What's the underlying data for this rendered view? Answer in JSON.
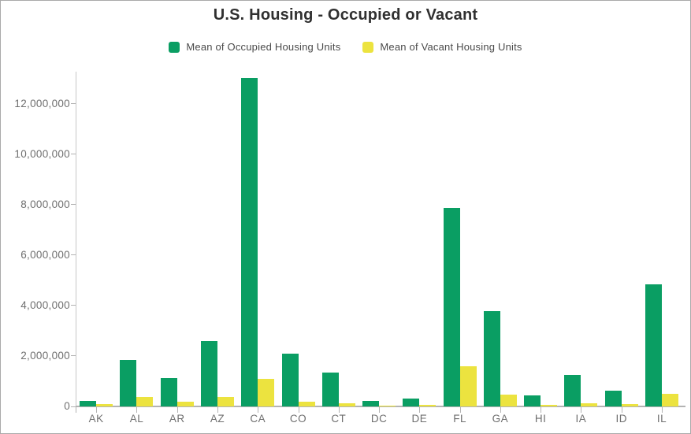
{
  "title": "U.S. Housing - Occupied or Vacant",
  "legend": {
    "items": [
      {
        "label": "Mean of Occupied Housing Units",
        "color": "#0a9e63"
      },
      {
        "label": "Mean of Vacant Housing Units",
        "color": "#ece33f"
      }
    ]
  },
  "colors": {
    "occupied": "#0a9e63",
    "vacant": "#ece33f",
    "axis_line": "#c6c6c6",
    "tick_line": "#b3b3b3",
    "tick_text": "#6f6f6f",
    "title_text": "#303030",
    "legend_text": "#4a4a4a"
  },
  "chart_data": {
    "type": "bar",
    "title": "U.S. Housing - Occupied or Vacant",
    "xlabel": "",
    "ylabel": "",
    "grid": false,
    "legend_position": "top",
    "categories": [
      "AK",
      "AL",
      "AR",
      "AZ",
      "CA",
      "CO",
      "CT",
      "DC",
      "DE",
      "FL",
      "GA",
      "HI",
      "IA",
      "ID",
      "IL"
    ],
    "series": [
      {
        "name": "Mean of Occupied Housing Units",
        "color": "#0a9e63",
        "values": [
          220000,
          1850000,
          1120000,
          2580000,
          13030000,
          2090000,
          1350000,
          230000,
          320000,
          7860000,
          3780000,
          430000,
          1250000,
          610000,
          4840000
        ]
      },
      {
        "name": "Mean of Vacant Housing Units",
        "color": "#ece33f",
        "values": [
          80000,
          360000,
          190000,
          370000,
          1080000,
          190000,
          110000,
          30000,
          60000,
          1580000,
          470000,
          70000,
          120000,
          80000,
          490000
        ]
      }
    ],
    "y_ticks": [
      0,
      2000000,
      4000000,
      6000000,
      8000000,
      10000000,
      12000000
    ],
    "y_tick_labels": [
      "0",
      "2,000,000",
      "4,000,000",
      "6,000,000",
      "8,000,000",
      "10,000,000",
      "12,000,000"
    ],
    "ylim": [
      0,
      13280000
    ]
  }
}
